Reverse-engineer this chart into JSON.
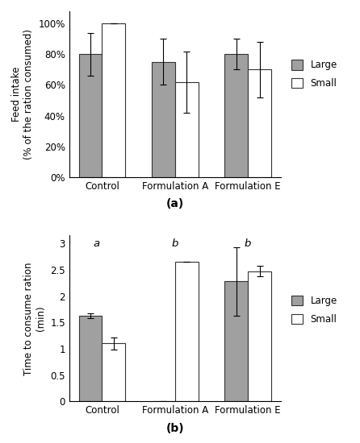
{
  "categories": [
    "Control",
    "Formulation A",
    "Formulation E"
  ],
  "chart_a": {
    "title": "(a)",
    "ylabel": "Feed intake\n(% of the ration consumed)",
    "ylim": [
      0,
      1.08
    ],
    "yticks": [
      0,
      0.2,
      0.4,
      0.6,
      0.8,
      1.0
    ],
    "ytick_labels": [
      "0%",
      "20%",
      "40%",
      "60%",
      "80%",
      "100%"
    ],
    "large_values": [
      0.8,
      0.75,
      0.8
    ],
    "small_values": [
      1.0,
      0.62,
      0.7
    ],
    "large_errors": [
      0.14,
      0.15,
      0.1
    ],
    "small_errors": [
      0.0,
      0.2,
      0.18
    ],
    "large_color": "#a0a0a0",
    "small_color": "#ffffff"
  },
  "chart_b": {
    "title": "(b)",
    "ylabel": "Time to consume ration\n(min)",
    "ylim": [
      0,
      3.15
    ],
    "yticks": [
      0,
      0.5,
      1.0,
      1.5,
      2.0,
      2.5,
      3.0
    ],
    "ytick_labels": [
      "0",
      "0.5",
      "1",
      "1.5",
      "2",
      "2.5",
      "3"
    ],
    "large_values": [
      1.63,
      0.0,
      2.28
    ],
    "small_values": [
      1.1,
      2.65,
      2.47
    ],
    "large_errors": [
      0.05,
      0.0,
      0.65
    ],
    "small_errors": [
      0.12,
      0.0,
      0.1
    ],
    "significance_labels": [
      "a",
      "b",
      "b"
    ],
    "large_color": "#a0a0a0",
    "small_color": "#ffffff"
  },
  "bar_width": 0.32,
  "legend_labels": [
    "Large",
    "Small"
  ],
  "edge_color": "#333333",
  "figure_bg": "#ffffff",
  "font_size": 8.5,
  "title_font_size": 10
}
